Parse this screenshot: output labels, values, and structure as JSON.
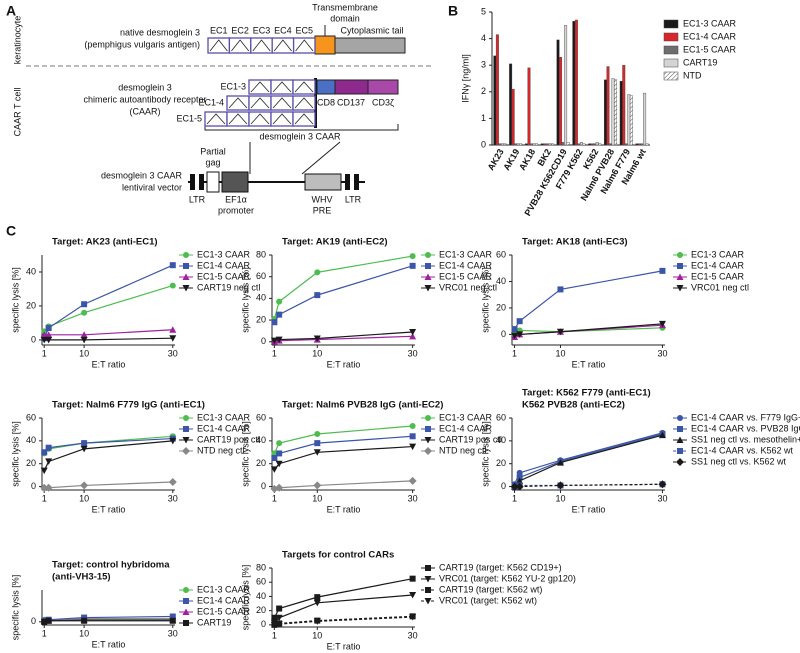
{
  "panel_labels": [
    "A",
    "B",
    "C"
  ],
  "diagram": {
    "cell_labels": [
      "keratinocyte",
      "CAAR T cell"
    ],
    "native": [
      "native desmoglein 3",
      "(pemphigus vulgaris antigen)"
    ],
    "domains": [
      "EC1",
      "EC2",
      "EC3",
      "EC4",
      "EC5"
    ],
    "transmembrane": [
      "Transmembrane",
      "domain"
    ],
    "cytoplasmic": "Cytoplasmic tail",
    "caar": [
      "desmoglein 3",
      "chimeric autoantibody receptor",
      "(CAAR)"
    ],
    "variants": [
      "EC1-3",
      "EC1-4",
      "EC1-5"
    ],
    "signaling": [
      "CD8",
      "CD137",
      "CD3ζ"
    ],
    "caar_bracket": "desmoglein 3 CAAR",
    "vector": [
      "desmoglein 3 CAAR",
      "lentiviral vector"
    ],
    "gag": [
      "Partial",
      "gag"
    ],
    "ltr": [
      "LTR",
      "LTR"
    ],
    "promoter": [
      "EF1α",
      "promoter"
    ],
    "pre": [
      "WHV",
      "PRE"
    ]
  },
  "chart_data": [
    {
      "type": "bar",
      "y_label": "IFNγ [ng/ml]",
      "categories": [
        "AK23",
        "AK19",
        "AK18",
        "BK2",
        "PVB28 K562CD19",
        "F779 K562",
        "K562",
        "Nalm6 PVB28",
        "Nalm6 F779",
        "Nalm6 wt"
      ],
      "ylim": [
        0,
        5
      ],
      "yticks": [
        0,
        1,
        2,
        3,
        4,
        5
      ],
      "series": [
        {
          "name": "EC1-3 CAAR",
          "color": "#1a1a1a",
          "values": [
            3.35,
            3.05,
            0.05,
            0.05,
            3.95,
            4.65,
            0.05,
            2.45,
            2.4,
            0.05
          ]
        },
        {
          "name": "EC1-4 CAAR",
          "color": "#d8262b",
          "values": [
            4.15,
            2.1,
            2.9,
            0.05,
            3.3,
            4.7,
            0.05,
            2.95,
            3.0,
            0.05
          ]
        },
        {
          "name": "EC1-5 CAAR",
          "color": "#6e6e6e",
          "values": [
            0.05,
            0.05,
            0.05,
            0.05,
            0.1,
            0.05,
            0.05,
            0.05,
            0.05,
            0.05
          ]
        },
        {
          "name": "CART19",
          "color": "#d4d4d4",
          "values": [
            0.05,
            0.05,
            0.05,
            0.05,
            4.5,
            0.1,
            0.1,
            2.5,
            1.9,
            1.95
          ]
        },
        {
          "name": "NTD",
          "color": "#ffffff",
          "pattern": "hatch",
          "values": [
            0.05,
            0.05,
            0.05,
            0.05,
            0.1,
            0.05,
            0.05,
            2.45,
            1.85,
            0.05
          ]
        }
      ]
    },
    {
      "type": "line",
      "title": [
        "Target: AK23 (anti-EC1)"
      ],
      "x_label": "E:T ratio",
      "y_label": "specific lysis [%]",
      "x": [
        1,
        2,
        10,
        30
      ],
      "xlim": [
        0.5,
        30.5
      ],
      "xticks": [
        1,
        10,
        30
      ],
      "ylim": [
        -3,
        50
      ],
      "yticks": [
        0,
        20,
        40
      ],
      "series": [
        {
          "name": "EC1-3 CAAR",
          "color": "#4dbd4d",
          "marker": "circle",
          "values": [
            5,
            8,
            16,
            32
          ]
        },
        {
          "name": "EC1-4 CAAR",
          "color": "#3b55a8",
          "marker": "square",
          "values": [
            1,
            7,
            21,
            44
          ]
        },
        {
          "name": "EC1-5 CAAR",
          "color": "#a020a0",
          "marker": "triangle",
          "values": [
            3,
            3,
            3,
            6
          ]
        },
        {
          "name": "CART19 neg ctl",
          "color": "#1a1a1a",
          "marker": "down",
          "values": [
            0,
            0,
            0,
            1
          ]
        }
      ]
    },
    {
      "type": "line",
      "title": [
        "Target: AK19 (anti-EC2)"
      ],
      "x_label": "E:T ratio",
      "y_label": "specific lysis [%]",
      "x": [
        1,
        2,
        10,
        30
      ],
      "xlim": [
        0.5,
        30.5
      ],
      "xticks": [
        1,
        10,
        30
      ],
      "ylim": [
        -3,
        80
      ],
      "yticks": [
        0,
        20,
        40,
        60,
        80
      ],
      "series": [
        {
          "name": "EC1-3 CAAR",
          "color": "#4dbd4d",
          "marker": "circle",
          "values": [
            21,
            37,
            64,
            79
          ]
        },
        {
          "name": "EC1-4 CAAR",
          "color": "#3b55a8",
          "marker": "square",
          "values": [
            18,
            25,
            43,
            70
          ]
        },
        {
          "name": "EC1-5 CAAR",
          "color": "#a020a0",
          "marker": "triangle",
          "values": [
            0,
            1,
            2,
            5
          ]
        },
        {
          "name": "VRC01 neg ctl",
          "color": "#1a1a1a",
          "marker": "down",
          "values": [
            1,
            2,
            3,
            9
          ]
        }
      ]
    },
    {
      "type": "line",
      "title": [
        "Target: AK18 (anti-EC3)"
      ],
      "x_label": "E:T ratio",
      "y_label": "specific lysis [%]",
      "x": [
        1,
        2,
        10,
        30
      ],
      "xlim": [
        0.5,
        30.5
      ],
      "xticks": [
        1,
        10,
        30
      ],
      "ylim": [
        -8,
        60
      ],
      "yticks": [
        0,
        20,
        40,
        60
      ],
      "series": [
        {
          "name": "EC1-3 CAAR",
          "color": "#4dbd4d",
          "marker": "circle",
          "values": [
            0,
            3,
            2,
            5
          ]
        },
        {
          "name": "EC1-4 CAAR",
          "color": "#3b55a8",
          "marker": "square",
          "values": [
            4,
            10,
            34,
            48
          ]
        },
        {
          "name": "EC1-5 CAAR",
          "color": "#a020a0",
          "marker": "triangle",
          "values": [
            -2,
            0,
            2,
            7
          ]
        },
        {
          "name": "VRC01 neg ctl",
          "color": "#1a1a1a",
          "marker": "down",
          "values": [
            -1,
            0,
            2,
            8
          ]
        }
      ]
    },
    {
      "type": "line",
      "title": [
        "Target: Nalm6 F779 IgG (anti-EC1)"
      ],
      "x_label": "E:T ratio",
      "y_label": "specific lysis [%]",
      "x": [
        1,
        2,
        10,
        30
      ],
      "xlim": [
        0.5,
        30.5
      ],
      "xticks": [
        1,
        10,
        30
      ],
      "ylim": [
        -3,
        60
      ],
      "yticks": [
        0,
        20,
        40,
        60
      ],
      "series": [
        {
          "name": "EC1-3 CAAR",
          "color": "#4dbd4d",
          "marker": "circle",
          "values": [
            29,
            33,
            38,
            44
          ]
        },
        {
          "name": "EC1-4 CAAR",
          "color": "#3b55a8",
          "marker": "square",
          "values": [
            30,
            34,
            38,
            42
          ]
        },
        {
          "name": "CART19 pos ctl",
          "color": "#1a1a1a",
          "marker": "down",
          "values": [
            14,
            22,
            33,
            40
          ]
        },
        {
          "name": "NTD neg ctl",
          "color": "#888888",
          "marker": "diamond",
          "values": [
            -1,
            -1,
            1,
            4
          ]
        }
      ]
    },
    {
      "type": "line",
      "title": [
        "Target: Nalm6 PVB28 IgG (anti-EC2)"
      ],
      "x_label": "E:T ratio",
      "y_label": "specific lysis [%]",
      "x": [
        1,
        2,
        10,
        30
      ],
      "xlim": [
        0.5,
        30.5
      ],
      "xticks": [
        1,
        10,
        30
      ],
      "ylim": [
        -3,
        60
      ],
      "yticks": [
        0,
        20,
        40,
        60
      ],
      "series": [
        {
          "name": "EC1-3 CAAR",
          "color": "#4dbd4d",
          "marker": "circle",
          "values": [
            29,
            38,
            46,
            53
          ]
        },
        {
          "name": "EC1-4 CAAR",
          "color": "#3b55a8",
          "marker": "square",
          "values": [
            25,
            29,
            38,
            44
          ]
        },
        {
          "name": "CART19 pos ctl",
          "color": "#1a1a1a",
          "marker": "down",
          "values": [
            15,
            20,
            30,
            35
          ]
        },
        {
          "name": "NTD neg ctl",
          "color": "#888888",
          "marker": "diamond",
          "values": [
            -2,
            -1,
            1,
            5
          ]
        }
      ]
    },
    {
      "type": "line",
      "title": [
        "Target:  K562 F779 (anti-EC1)",
        "K562 PVB28 (anti-EC2)"
      ],
      "x_label": "E:T ratio",
      "y_label": "specific lysis [%]",
      "x": [
        1,
        2,
        10,
        30
      ],
      "xlim": [
        0.5,
        30.5
      ],
      "xticks": [
        1,
        10,
        30
      ],
      "ylim": [
        -3,
        60
      ],
      "yticks": [
        0,
        20,
        40,
        60
      ],
      "series": [
        {
          "name": "EC1-4 CAAR vs. F779 IgG+",
          "color": "#3b55a8",
          "marker": "circle",
          "values": [
            2,
            12,
            23,
            47
          ]
        },
        {
          "name": "EC1-4 CAAR vs. PVB28 IgG+",
          "color": "#3b55a8",
          "marker": "square",
          "values": [
            0,
            8,
            22,
            46
          ]
        },
        {
          "name": "SS1 neg ctl vs. mesothelin+",
          "color": "#1a1a1a",
          "marker": "triangle",
          "values": [
            0,
            5,
            21,
            45
          ]
        },
        {
          "name": "EC1-4 CAAR vs. K562 wt",
          "color": "#3b55a8",
          "marker": "square",
          "dashed": true,
          "values": [
            0,
            1,
            1,
            2
          ]
        },
        {
          "name": "SS1 neg ctl vs. K562 wt",
          "color": "#1a1a1a",
          "marker": "diamond",
          "dashed": true,
          "values": [
            0,
            0,
            1,
            2
          ]
        }
      ]
    },
    {
      "type": "line",
      "title": [
        "Target: control hybridoma",
        "(anti-VH3-15)"
      ],
      "x_label": "E:T ratio",
      "y_label": "specific lysis [%]",
      "x": [
        1,
        2,
        10,
        30
      ],
      "xlim": [
        0.5,
        30.5
      ],
      "xticks": [
        1,
        10,
        30
      ],
      "ylim": [
        -3,
        30
      ],
      "yticks": [
        0
      ],
      "series": [
        {
          "name": "EC1-3 CAAR",
          "color": "#4dbd4d",
          "marker": "circle",
          "values": [
            2,
            1,
            3,
            3
          ]
        },
        {
          "name": "EC1-4 CAAR",
          "color": "#3b55a8",
          "marker": "square",
          "values": [
            1,
            2,
            4,
            5
          ]
        },
        {
          "name": "EC1-5 CAAR",
          "color": "#a020a0",
          "marker": "triangle",
          "values": [
            1,
            1,
            2,
            2
          ]
        },
        {
          "name": "CART19",
          "color": "#1a1a1a",
          "marker": "square",
          "values": [
            0,
            1,
            1,
            1
          ]
        }
      ]
    },
    {
      "type": "line",
      "title": [
        "Targets for control CARs"
      ],
      "x_label": "E:T ratio",
      "y_label": "specific lysis [%]",
      "x": [
        1,
        2,
        10,
        30
      ],
      "xlim": [
        0.5,
        30.5
      ],
      "xticks": [
        1,
        10,
        30
      ],
      "ylim": [
        -3,
        80
      ],
      "yticks": [
        0,
        20,
        40,
        60,
        80
      ],
      "series": [
        {
          "name": "CART19 (target: K562 CD19+)",
          "color": "#1a1a1a",
          "marker": "square",
          "values": [
            10,
            23,
            39,
            65
          ]
        },
        {
          "name": "VRC01 (target: K562 YU-2 gp120)",
          "color": "#1a1a1a",
          "marker": "down",
          "values": [
            3,
            10,
            31,
            42
          ]
        },
        {
          "name": "CART19 (target: K562 wt)",
          "color": "#1a1a1a",
          "marker": "square",
          "dashed": true,
          "values": [
            0,
            2,
            6,
            12
          ]
        },
        {
          "name": "VRC01 (target: K562 wt)",
          "color": "#1a1a1a",
          "marker": "down",
          "dashed": true,
          "values": [
            0,
            1,
            5,
            11
          ]
        }
      ]
    }
  ]
}
